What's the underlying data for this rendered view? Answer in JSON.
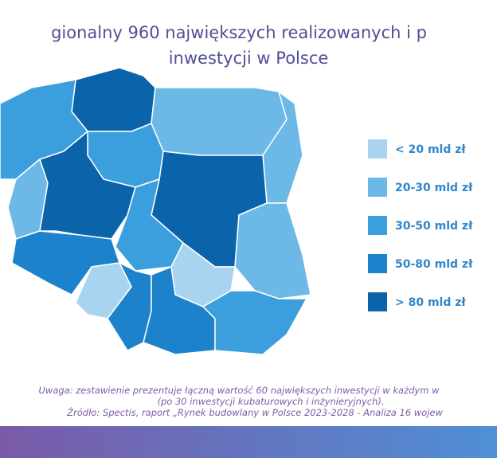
{
  "title": {
    "lines": [
      "gionalny 960 największych realizowanych i p",
      "inwestycji w Polsce"
    ]
  },
  "legend": {
    "items": [
      {
        "label": "< 20 mld zł",
        "color": "#a8d4ef"
      },
      {
        "label": "20-30 mld zł",
        "color": "#6cb8e6"
      },
      {
        "label": "30-50 mld zł",
        "color": "#3a9fdc"
      },
      {
        "label": "50-80 mld zł",
        "color": "#1b82cb"
      },
      {
        "label": "> 80 mld zł",
        "color": "#0b63aa"
      }
    ]
  },
  "notes": [
    "Uwaga: zestawienie prezentuje łączną wartość 60 największych inwestycji w każdym w",
    "(po 30 inwestycji kubaturowych i inżynieryjnych).",
    "Źródło: Spectis, raport „Rynek budowlany w Polsce 2023-2028 - Analiza 16 wojew"
  ]
}
